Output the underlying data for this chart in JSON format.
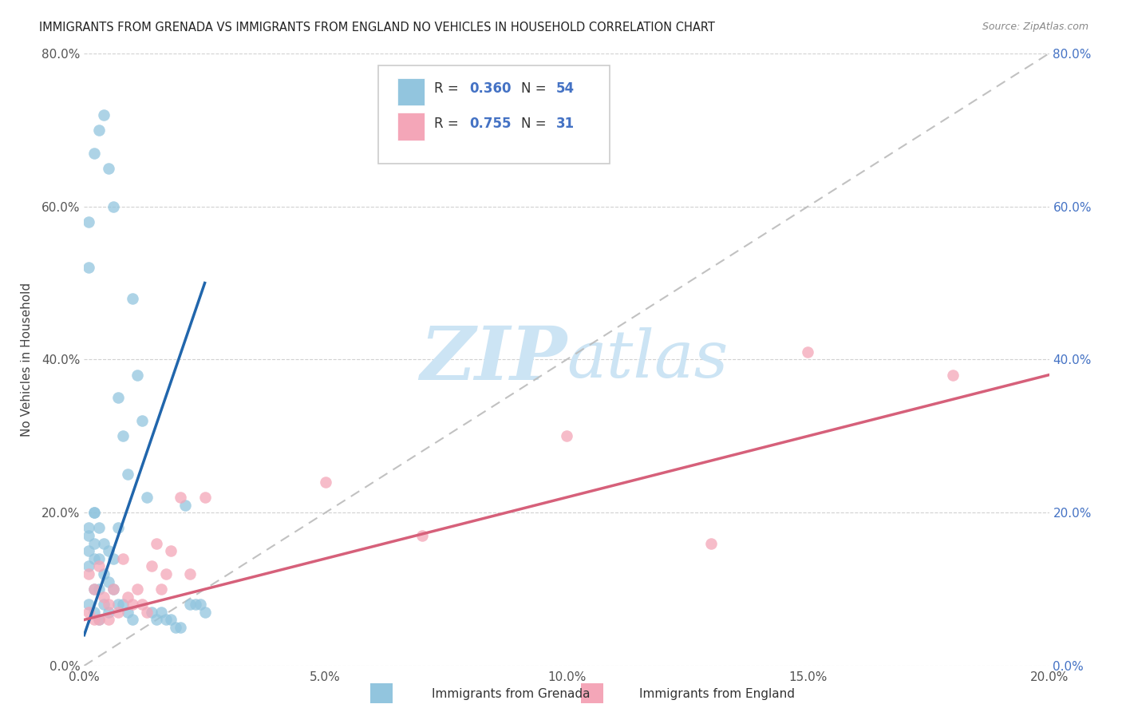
{
  "title": "IMMIGRANTS FROM GRENADA VS IMMIGRANTS FROM ENGLAND NO VEHICLES IN HOUSEHOLD CORRELATION CHART",
  "source": "Source: ZipAtlas.com",
  "ylabel": "No Vehicles in Household",
  "legend_label1": "Immigrants from Grenada",
  "legend_label2": "Immigrants from England",
  "R1": 0.36,
  "N1": 54,
  "R2": 0.755,
  "N2": 31,
  "xlim": [
    0.0,
    0.2
  ],
  "ylim": [
    0.0,
    0.8
  ],
  "xticks": [
    0.0,
    0.05,
    0.1,
    0.15,
    0.2
  ],
  "yticks": [
    0.0,
    0.2,
    0.4,
    0.6,
    0.8
  ],
  "color1": "#92c5de",
  "color2": "#f4a6b8",
  "line_color1": "#2166ac",
  "line_color2": "#d6607a",
  "ref_line_color": "#bbbbbb",
  "grid_color": "#cccccc",
  "watermark_color": "#cce4f4",
  "title_color": "#222222",
  "source_color": "#888888",
  "tick_color_left": "#555555",
  "tick_color_right": "#4472c4",
  "ylabel_color": "#444444",
  "grenada_x": [
    0.001,
    0.001,
    0.001,
    0.001,
    0.001,
    0.001,
    0.002,
    0.002,
    0.002,
    0.002,
    0.002,
    0.002,
    0.003,
    0.003,
    0.003,
    0.003,
    0.003,
    0.004,
    0.004,
    0.004,
    0.004,
    0.005,
    0.005,
    0.005,
    0.005,
    0.006,
    0.006,
    0.006,
    0.007,
    0.007,
    0.007,
    0.008,
    0.008,
    0.009,
    0.009,
    0.01,
    0.01,
    0.011,
    0.012,
    0.013,
    0.014,
    0.015,
    0.016,
    0.017,
    0.018,
    0.019,
    0.02,
    0.021,
    0.022,
    0.023,
    0.024,
    0.025,
    0.001,
    0.002
  ],
  "grenada_y": [
    0.52,
    0.18,
    0.17,
    0.15,
    0.13,
    0.08,
    0.67,
    0.2,
    0.16,
    0.14,
    0.1,
    0.07,
    0.7,
    0.18,
    0.14,
    0.1,
    0.06,
    0.72,
    0.16,
    0.12,
    0.08,
    0.65,
    0.15,
    0.11,
    0.07,
    0.6,
    0.14,
    0.1,
    0.35,
    0.18,
    0.08,
    0.3,
    0.08,
    0.25,
    0.07,
    0.48,
    0.06,
    0.38,
    0.32,
    0.22,
    0.07,
    0.06,
    0.07,
    0.06,
    0.06,
    0.05,
    0.05,
    0.21,
    0.08,
    0.08,
    0.08,
    0.07,
    0.58,
    0.2
  ],
  "england_x": [
    0.001,
    0.001,
    0.002,
    0.002,
    0.003,
    0.003,
    0.004,
    0.005,
    0.005,
    0.006,
    0.007,
    0.008,
    0.009,
    0.01,
    0.011,
    0.012,
    0.013,
    0.014,
    0.015,
    0.016,
    0.017,
    0.018,
    0.02,
    0.022,
    0.025,
    0.05,
    0.07,
    0.1,
    0.13,
    0.15,
    0.18
  ],
  "england_y": [
    0.12,
    0.07,
    0.1,
    0.06,
    0.13,
    0.06,
    0.09,
    0.08,
    0.06,
    0.1,
    0.07,
    0.14,
    0.09,
    0.08,
    0.1,
    0.08,
    0.07,
    0.13,
    0.16,
    0.1,
    0.12,
    0.15,
    0.22,
    0.12,
    0.22,
    0.24,
    0.17,
    0.3,
    0.16,
    0.41,
    0.38
  ],
  "blue_line_x": [
    0.0,
    0.025
  ],
  "blue_line_y": [
    0.04,
    0.5
  ],
  "pink_line_x": [
    0.0,
    0.2
  ],
  "pink_line_y": [
    0.06,
    0.38
  ]
}
